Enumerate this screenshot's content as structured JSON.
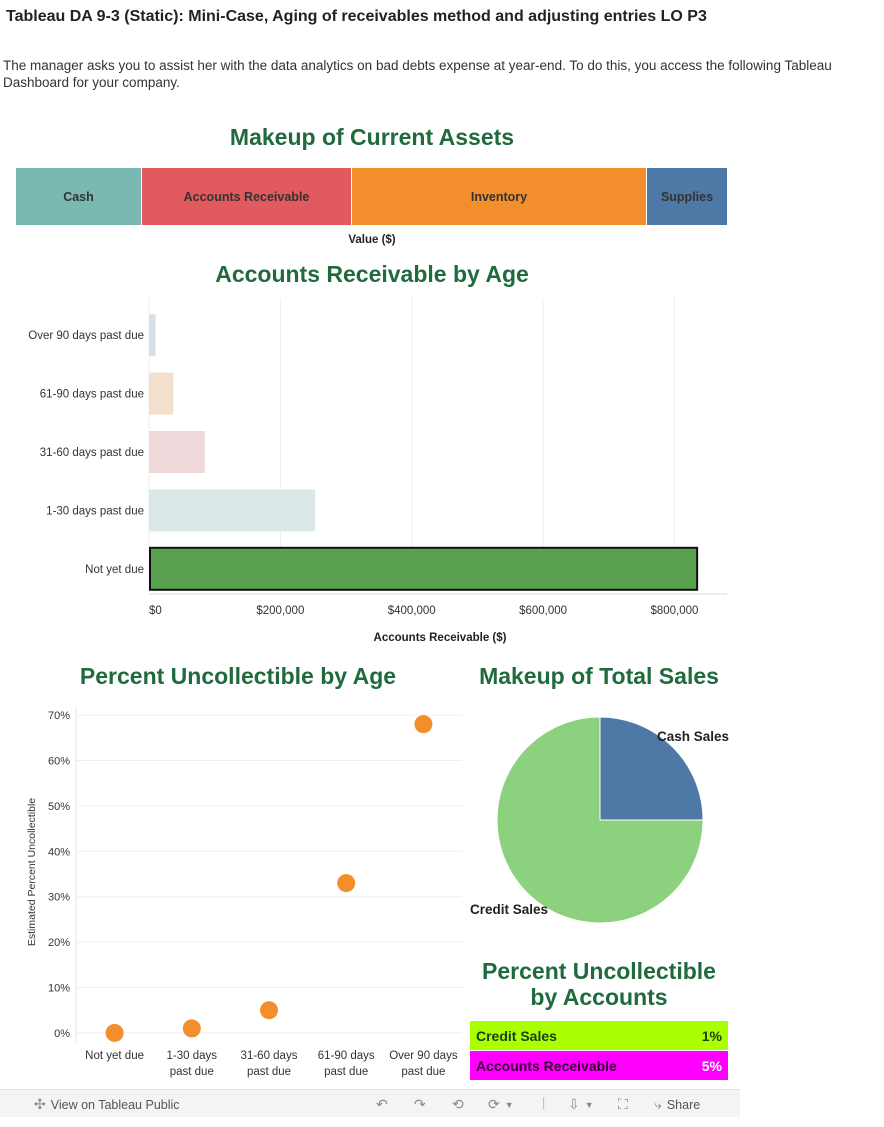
{
  "page": {
    "title": "Tableau DA 9-3 (Static): Mini-Case, Aging of receivables method and adjusting entries LO P3",
    "intro": "The manager asks you to assist her with the data analytics on bad debts expense at year-end. To do this, you access the following Tableau Dashboard for your company."
  },
  "assets": {
    "title": "Makeup of Current Assets",
    "axis_label": "Value ($)",
    "segments": [
      {
        "label": "Cash",
        "color": "#7ab8b2"
      },
      {
        "label": "Accounts Receivable",
        "color": "#e05a5e"
      },
      {
        "label": "Inventory",
        "color": "#f28e2b"
      },
      {
        "label": "Supplies",
        "color": "#4e79a7"
      }
    ]
  },
  "ar_age": {
    "title": "Accounts Receivable by Age",
    "xlabel": "Accounts Receivable ($)"
  },
  "pct_uncollectible": {
    "title": "Percent Uncollectible by Age",
    "ylabel": "Estimated Percent Uncollectible"
  },
  "sales": {
    "title": "Makeup of Total Sales",
    "labels": {
      "cash": "Cash Sales",
      "credit": "Credit Sales"
    }
  },
  "pu_accounts": {
    "title_line1": "Percent Uncollectible",
    "title_line2": "by Accounts",
    "rows": [
      {
        "label": "Credit Sales",
        "value": "1%",
        "color": "#aaff00"
      },
      {
        "label": "Accounts Receivable",
        "value": "5%",
        "color": "#ff00ff"
      }
    ]
  },
  "footer": {
    "view_label": "View on Tableau Public",
    "share_label": "Share"
  },
  "chart_data": [
    {
      "type": "bar",
      "title": "Makeup of Current Assets",
      "xlabel": "Value ($)",
      "orientation": "horizontal-stacked",
      "categories": [
        "Cash",
        "Accounts Receivable",
        "Inventory",
        "Supplies"
      ],
      "values": [
        126,
        210,
        295,
        81
      ],
      "colors": [
        "#7ab8b2",
        "#e05a5e",
        "#f28e2b",
        "#4e79a7"
      ]
    },
    {
      "type": "bar",
      "title": "Accounts Receivable by Age",
      "xlabel": "Accounts Receivable ($)",
      "orientation": "horizontal",
      "categories": [
        "Over 90 days past due",
        "61-90 days past due",
        "31-60 days past due",
        "1-30 days past due",
        "Not yet due"
      ],
      "values": [
        10000,
        37000,
        85000,
        253000,
        833000
      ],
      "colors": [
        "#d7e0ea",
        "#f3e0cd",
        "#efd8d9",
        "#dce8e8",
        "#59a14f"
      ],
      "xlim": [
        0,
        880000
      ],
      "xticks": [
        0,
        200000,
        400000,
        600000,
        800000
      ],
      "xtick_labels": [
        "$0",
        "$200,000",
        "$400,000",
        "$600,000",
        "$800,000"
      ],
      "grid": true
    },
    {
      "type": "scatter",
      "title": "Percent Uncollectible by Age",
      "ylabel": "Estimated Percent Uncollectible",
      "categories": [
        "Not yet due",
        "1-30 days past due",
        "31-60 days past due",
        "61-90 days past due",
        "Over 90 days past due"
      ],
      "category_lines": [
        [
          "Not yet due"
        ],
        [
          "1-30 days",
          "past due"
        ],
        [
          "31-60 days",
          "past due"
        ],
        [
          "61-90 days",
          "past due"
        ],
        [
          "Over 90 days",
          "past due"
        ]
      ],
      "values": [
        0.0,
        1.0,
        5.0,
        33.0,
        68.0
      ],
      "ylim": [
        -2,
        72
      ],
      "yticks": [
        0,
        10,
        20,
        30,
        40,
        50,
        60,
        70
      ],
      "ytick_labels": [
        "0%",
        "10%",
        "20%",
        "30%",
        "40%",
        "50%",
        "60%",
        "70%"
      ],
      "color": "#f28e2b",
      "grid": true
    },
    {
      "type": "pie",
      "title": "Makeup of Total Sales",
      "categories": [
        "Cash Sales",
        "Credit Sales"
      ],
      "values": [
        25,
        75
      ],
      "colors": [
        "#4e79a7",
        "#8cd17d"
      ]
    }
  ]
}
